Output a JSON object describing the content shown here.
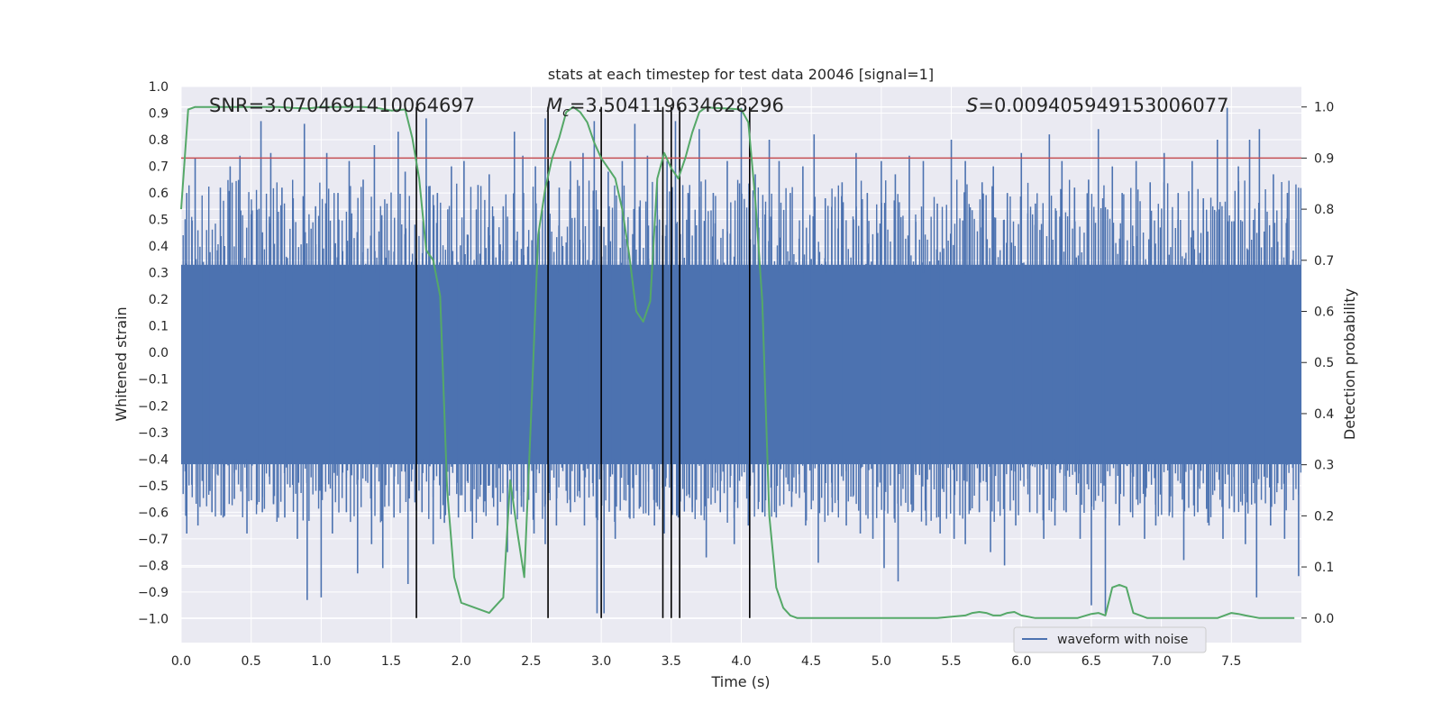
{
  "chart_data": {
    "type": "line",
    "title": "stats at each timestep for test data 20046 [signal=1]",
    "xlabel": "Time (s)",
    "ylabel_left": "Whitened strain",
    "ylabel_right": "Detection probability",
    "xlim": [
      0.0,
      8.0
    ],
    "ylim_left": [
      -1.09,
      1.0
    ],
    "ylim_right": [
      -0.048,
      1.04
    ],
    "x_ticks": [
      "0.0",
      "0.5",
      "1.0",
      "1.5",
      "2.0",
      "2.5",
      "3.0",
      "3.5",
      "4.0",
      "4.5",
      "5.0",
      "5.5",
      "6.0",
      "6.5",
      "7.0",
      "7.5"
    ],
    "y_left_ticks": [
      "1.0",
      "0.9",
      "0.8",
      "0.7",
      "0.6",
      "0.5",
      "0.4",
      "0.3",
      "0.2",
      "0.1",
      "0.0",
      "−0.1",
      "−0.2",
      "−0.3",
      "−0.4",
      "−0.5",
      "−0.6",
      "−0.7",
      "−0.8",
      "−0.9",
      "−1.0"
    ],
    "y_right_ticks": [
      "1.0",
      "0.9",
      "0.8",
      "0.7",
      "0.6",
      "0.5",
      "0.4",
      "0.3",
      "0.2",
      "0.1",
      "0.0"
    ],
    "annotations": {
      "snr": "SNR=3.0704691410064697",
      "mc_symbol": "M",
      "mc_sub": "c",
      "mc_value": "=3.504119634628296",
      "s_symbol": "S",
      "s_value": "=0.009405949153006077"
    },
    "threshold": {
      "value": 0.9,
      "axis": "right",
      "color": "#c44e52"
    },
    "vertical_lines_x": [
      1.68,
      2.62,
      3.0,
      3.44,
      3.5,
      3.56,
      4.06
    ],
    "waveform": {
      "name": "waveform with noise",
      "color": "#4c72b0",
      "band": [
        -0.42,
        0.33
      ],
      "peaks_up_t": [
        0.04,
        0.1,
        0.28,
        0.35,
        0.42,
        0.5,
        0.57,
        0.64,
        0.72,
        0.8,
        0.88,
        0.96,
        1.04,
        1.12,
        1.2,
        1.3,
        1.38,
        1.47,
        1.55,
        1.6,
        1.75,
        1.83,
        1.93,
        2.02,
        2.12,
        2.2,
        2.3,
        2.38,
        2.44,
        2.53,
        2.6,
        2.7,
        2.78,
        2.87,
        2.95,
        3.05,
        3.15,
        3.24,
        3.33,
        3.4,
        3.47,
        3.53,
        3.62,
        3.7,
        3.8,
        3.9,
        4.0,
        4.1,
        4.2,
        4.27,
        4.35,
        4.44,
        4.52,
        4.6,
        4.72,
        4.82,
        4.9,
        5.0,
        5.1,
        5.2,
        5.3,
        5.4,
        5.5,
        5.6,
        5.72,
        5.8,
        5.9,
        6.0,
        6.1,
        6.2,
        6.29,
        6.38,
        6.48,
        6.55,
        6.65,
        6.72,
        6.82,
        6.92,
        7.02,
        7.12,
        7.22,
        7.3,
        7.4,
        7.47,
        7.55,
        7.63,
        7.7,
        7.8,
        7.9
      ],
      "peaks_up_v": [
        0.6,
        0.73,
        0.62,
        0.7,
        0.74,
        0.52,
        0.87,
        0.75,
        0.62,
        0.58,
        0.86,
        0.55,
        0.75,
        0.6,
        0.72,
        0.65,
        0.78,
        0.56,
        0.83,
        0.68,
        0.88,
        0.6,
        0.7,
        0.72,
        0.63,
        0.67,
        0.55,
        0.83,
        0.74,
        0.7,
        0.88,
        0.62,
        0.72,
        0.75,
        0.87,
        0.68,
        0.72,
        0.86,
        0.74,
        0.65,
        0.72,
        0.87,
        0.6,
        0.84,
        0.6,
        0.72,
        0.92,
        0.67,
        0.8,
        0.72,
        0.6,
        0.7,
        0.82,
        0.58,
        0.64,
        0.75,
        0.6,
        0.72,
        0.67,
        0.74,
        0.72,
        0.56,
        0.8,
        0.72,
        0.64,
        0.7,
        0.6,
        0.75,
        0.56,
        0.82,
        0.72,
        0.62,
        0.65,
        0.84,
        0.7,
        0.6,
        0.72,
        0.64,
        0.75,
        0.6,
        0.72,
        0.58,
        0.8,
        0.92,
        0.7,
        0.8,
        0.84,
        0.67,
        0.6
      ],
      "peaks_down_t": [
        0.04,
        0.12,
        0.22,
        0.3,
        0.38,
        0.47,
        0.58,
        0.66,
        0.74,
        0.83,
        0.9,
        1.0,
        1.08,
        1.18,
        1.26,
        1.36,
        1.44,
        1.52,
        1.62,
        1.72,
        1.8,
        1.88,
        1.98,
        2.08,
        2.16,
        2.26,
        2.33,
        2.43,
        2.52,
        2.6,
        2.68,
        2.78,
        2.88,
        2.97,
        3.02,
        3.1,
        3.2,
        3.28,
        3.38,
        3.45,
        3.55,
        3.65,
        3.75,
        3.85,
        3.95,
        4.05,
        4.15,
        4.25,
        4.36,
        4.46,
        4.55,
        4.65,
        4.75,
        4.85,
        4.94,
        5.02,
        5.12,
        5.22,
        5.32,
        5.42,
        5.52,
        5.6,
        5.7,
        5.78,
        5.88,
        5.96,
        6.06,
        6.16,
        6.24,
        6.32,
        6.42,
        6.5,
        6.6,
        6.7,
        6.78,
        6.88,
        6.96,
        7.06,
        7.16,
        7.26,
        7.34,
        7.44,
        7.52,
        7.6,
        7.68,
        7.78,
        7.88,
        7.98
      ],
      "peaks_down_v": [
        -0.68,
        -0.65,
        -0.6,
        -0.62,
        -0.55,
        -0.68,
        -0.6,
        -0.57,
        -0.62,
        -0.7,
        -0.93,
        -0.92,
        -0.68,
        -0.6,
        -0.83,
        -0.72,
        -0.81,
        -0.62,
        -0.87,
        -0.6,
        -0.72,
        -0.64,
        -0.62,
        -0.7,
        -0.6,
        -0.65,
        -0.75,
        -0.58,
        -0.68,
        -0.72,
        -0.65,
        -0.6,
        -0.65,
        -0.98,
        -0.98,
        -0.7,
        -0.62,
        -0.58,
        -0.65,
        -0.68,
        -0.62,
        -0.6,
        -0.77,
        -0.6,
        -0.72,
        -0.65,
        -0.6,
        -0.62,
        -0.58,
        -0.65,
        -0.79,
        -0.6,
        -0.65,
        -0.68,
        -0.7,
        -0.81,
        -0.86,
        -0.6,
        -0.65,
        -0.68,
        -0.7,
        -0.72,
        -0.6,
        -0.75,
        -0.8,
        -0.65,
        -0.6,
        -0.7,
        -0.65,
        -0.6,
        -0.7,
        -0.95,
        -0.98,
        -0.65,
        -0.6,
        -0.7,
        -0.65,
        -0.6,
        -0.78,
        -0.6,
        -0.65,
        -0.7,
        -0.6,
        -0.72,
        -0.92,
        -0.65,
        -0.7,
        -0.84
      ]
    },
    "probability": {
      "color": "#55a868",
      "x": [
        0.0,
        0.05,
        0.1,
        0.2,
        0.3,
        0.4,
        0.5,
        0.6,
        0.7,
        0.8,
        0.9,
        1.0,
        1.1,
        1.2,
        1.3,
        1.4,
        1.5,
        1.6,
        1.65,
        1.7,
        1.75,
        1.8,
        1.85,
        1.9,
        1.95,
        2.0,
        2.1,
        2.2,
        2.3,
        2.35,
        2.4,
        2.45,
        2.5,
        2.55,
        2.6,
        2.65,
        2.7,
        2.75,
        2.8,
        2.85,
        2.9,
        2.95,
        3.0,
        3.05,
        3.1,
        3.15,
        3.2,
        3.25,
        3.3,
        3.35,
        3.4,
        3.45,
        3.5,
        3.55,
        3.6,
        3.65,
        3.7,
        3.75,
        3.8,
        3.9,
        4.0,
        4.05,
        4.1,
        4.15,
        4.2,
        4.25,
        4.3,
        4.35,
        4.4,
        4.5,
        4.6,
        4.7,
        4.8,
        5.0,
        5.2,
        5.4,
        5.6,
        5.65,
        5.7,
        5.75,
        5.8,
        5.85,
        5.9,
        5.95,
        6.0,
        6.1,
        6.2,
        6.3,
        6.4,
        6.5,
        6.55,
        6.6,
        6.65,
        6.7,
        6.75,
        6.8,
        6.85,
        6.9,
        7.0,
        7.1,
        7.2,
        7.3,
        7.4,
        7.5,
        7.55,
        7.6,
        7.7,
        7.8,
        7.9,
        7.95
      ],
      "y": [
        0.8,
        0.995,
        1.0,
        1.0,
        1.0,
        1.0,
        1.0,
        1.0,
        1.0,
        0.998,
        0.997,
        1.0,
        1.0,
        1.0,
        1.0,
        0.998,
        0.993,
        0.995,
        0.94,
        0.86,
        0.72,
        0.7,
        0.63,
        0.25,
        0.08,
        0.03,
        0.02,
        0.01,
        0.04,
        0.27,
        0.17,
        0.08,
        0.4,
        0.75,
        0.84,
        0.9,
        0.94,
        0.99,
        1.0,
        0.99,
        0.97,
        0.93,
        0.9,
        0.88,
        0.86,
        0.8,
        0.71,
        0.6,
        0.58,
        0.62,
        0.86,
        0.91,
        0.88,
        0.86,
        0.9,
        0.95,
        0.99,
        1.0,
        0.998,
        0.997,
        0.995,
        0.97,
        0.82,
        0.62,
        0.2,
        0.06,
        0.02,
        0.005,
        0.0,
        0.0,
        0.0,
        0.0,
        0.0,
        0.0,
        0.0,
        0.0,
        0.005,
        0.01,
        0.012,
        0.01,
        0.005,
        0.005,
        0.01,
        0.012,
        0.005,
        0.0,
        0.0,
        0.0,
        0.0,
        0.008,
        0.01,
        0.005,
        0.06,
        0.065,
        0.06,
        0.01,
        0.005,
        0.0,
        0.0,
        0.0,
        0.0,
        0.0,
        0.0,
        0.01,
        0.008,
        0.005,
        0.0,
        0.0,
        0.0,
        0.0
      ]
    },
    "legend": {
      "label": "waveform with noise",
      "placement": "lower-right"
    }
  }
}
